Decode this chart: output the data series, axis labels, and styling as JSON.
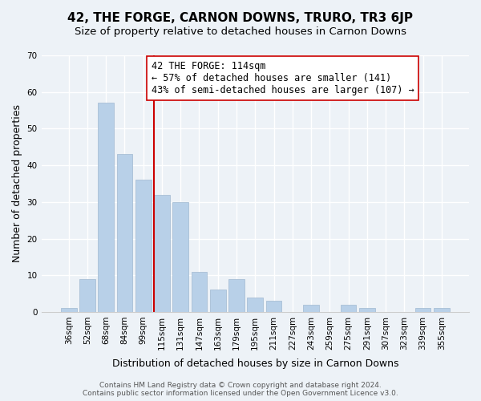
{
  "title": "42, THE FORGE, CARNON DOWNS, TRURO, TR3 6JP",
  "subtitle": "Size of property relative to detached houses in Carnon Downs",
  "xlabel": "Distribution of detached houses by size in Carnon Downs",
  "ylabel": "Number of detached properties",
  "bar_labels": [
    "36sqm",
    "52sqm",
    "68sqm",
    "84sqm",
    "99sqm",
    "115sqm",
    "131sqm",
    "147sqm",
    "163sqm",
    "179sqm",
    "195sqm",
    "211sqm",
    "227sqm",
    "243sqm",
    "259sqm",
    "275sqm",
    "291sqm",
    "307sqm",
    "323sqm",
    "339sqm",
    "355sqm"
  ],
  "bar_values": [
    1,
    9,
    57,
    43,
    36,
    32,
    30,
    11,
    6,
    9,
    4,
    3,
    0,
    2,
    0,
    2,
    1,
    0,
    0,
    1,
    1
  ],
  "bar_color": "#b8d0e8",
  "bar_edge_color": "#a0b8d0",
  "marker_index": 5,
  "marker_line_color": "#cc0000",
  "annotation_text": "42 THE FORGE: 114sqm\n← 57% of detached houses are smaller (141)\n43% of semi-detached houses are larger (107) →",
  "annotation_box_color": "#ffffff",
  "annotation_box_edge_color": "#cc0000",
  "ylim": [
    0,
    70
  ],
  "yticks": [
    0,
    10,
    20,
    30,
    40,
    50,
    60,
    70
  ],
  "background_color": "#edf2f7",
  "plot_bg_color": "#edf2f7",
  "footer_text": "Contains HM Land Registry data © Crown copyright and database right 2024.\nContains public sector information licensed under the Open Government Licence v3.0.",
  "grid_color": "#ffffff",
  "title_fontsize": 11,
  "subtitle_fontsize": 9.5,
  "annotation_fontsize": 8.5,
  "axis_label_fontsize": 9,
  "tick_fontsize": 7.5,
  "footer_fontsize": 6.5
}
